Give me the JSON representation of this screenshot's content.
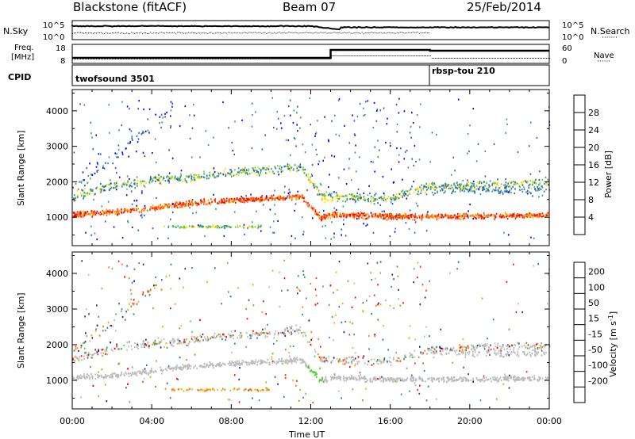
{
  "header": {
    "station": "Blackstone (fitACF)",
    "beam": "Beam 07",
    "date": "25/Feb/2014"
  },
  "labels": {
    "nsky": "N.Sky",
    "nsearch": "N.Search",
    "freq_line1": "Freq.",
    "freq_line2": "[MHz]",
    "nave": "Nave",
    "cpid": "CPID",
    "time_axis": "Time UT",
    "slant_range": "Slant Range [km]",
    "power_label": "Power [dB]",
    "velocity_label": "Velocity [m s",
    "velocity_exp": "-1",
    "velocity_close": "]"
  },
  "noise_panel": {
    "left_ticks": [
      "10^5",
      "10^0"
    ],
    "right_ticks": [
      "10^5",
      "10^0"
    ]
  },
  "freq_panel": {
    "left_ticks": [
      "18",
      "8"
    ],
    "right_ticks": [
      "60",
      "0"
    ]
  },
  "cpid_panel": {
    "segments": [
      {
        "label": "twofsound 3501",
        "start_hour": 0
      },
      {
        "label": "rbsp-tou 210",
        "start_hour": 18
      }
    ]
  },
  "chart_data": [
    {
      "type": "heatmap",
      "panel": "power",
      "xlabel": "Time UT",
      "ylabel": "Slant Range [km]",
      "x_ticks": [
        "00:00",
        "04:00",
        "08:00",
        "12:00",
        "16:00",
        "20:00",
        "00:00"
      ],
      "x_range_hours": [
        0,
        24
      ],
      "y_ticks": [
        1000,
        2000,
        3000,
        4000
      ],
      "y_range_km": [
        200,
        4600
      ],
      "colorbar": {
        "label": "Power [dB]",
        "ticks": [
          4,
          8,
          12,
          16,
          20,
          24,
          28
        ],
        "range": [
          0,
          32
        ],
        "colors": [
          "#0000ff",
          "#2060c0",
          "#3a9a78",
          "#66cc33",
          "#ffdd00",
          "#ff9900",
          "#ff5500",
          "#ff0000"
        ]
      },
      "bands": [
        {
          "name": "near-range echo",
          "points": [
            [
              0,
              1100
            ],
            [
              2,
              1160
            ],
            [
              4,
              1280
            ],
            [
              6,
              1420
            ],
            [
              8,
              1500
            ],
            [
              10,
              1550
            ],
            [
              11.5,
              1600
            ],
            [
              12.5,
              1000
            ],
            [
              13,
              1100
            ],
            [
              16,
              1050
            ],
            [
              18,
              1050
            ],
            [
              20,
              1050
            ],
            [
              24,
              1080
            ]
          ]
        },
        {
          "name": "far-range echo",
          "points": [
            [
              0,
              1600
            ],
            [
              2,
              1900
            ],
            [
              4,
              2050
            ],
            [
              6,
              2150
            ],
            [
              8,
              2300
            ],
            [
              10,
              2350
            ],
            [
              11.5,
              2450
            ],
            [
              12.5,
              1600
            ],
            [
              16,
              1550
            ],
            [
              18,
              1900
            ],
            [
              24,
              2000
            ]
          ]
        }
      ]
    },
    {
      "type": "heatmap",
      "panel": "velocity",
      "xlabel": "Time UT",
      "ylabel": "Slant Range [km]",
      "x_ticks": [
        "00:00",
        "04:00",
        "08:00",
        "12:00",
        "16:00",
        "20:00",
        "00:00"
      ],
      "x_range_hours": [
        0,
        24
      ],
      "y_ticks": [
        1000,
        2000,
        3000,
        4000
      ],
      "y_range_km": [
        200,
        4600
      ],
      "colorbar": {
        "label": "Velocity [m s-1]",
        "ticks": [
          200,
          100,
          50,
          15,
          -15,
          -50,
          -100,
          -200
        ],
        "colors": [
          "#1a1aa0",
          "#2a7a9a",
          "#3c9a4a",
          "#55cc33",
          "#bbbbbb",
          "#ffaa00",
          "#ff7700",
          "#ff3300",
          "#ff0000"
        ]
      }
    }
  ]
}
